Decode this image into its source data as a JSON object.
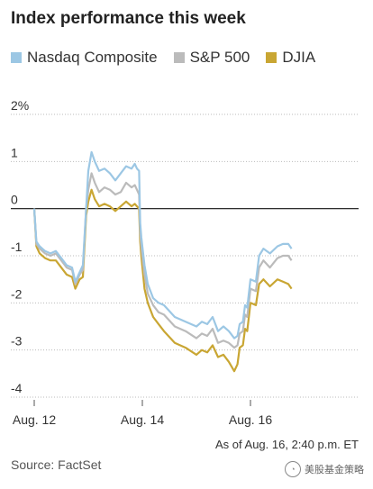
{
  "title": "Index performance this week",
  "note": "As of Aug. 16, 2:40 p.m. ET",
  "source": "Source: FactSet",
  "watermark": {
    "icon": "wechat-icon",
    "text": "美股基金策略"
  },
  "chart_data": {
    "type": "line",
    "title": "Index performance this week",
    "ylim": [
      -4,
      2
    ],
    "yticks": [
      {
        "value": 2,
        "label": "2%"
      },
      {
        "value": 1,
        "label": "1"
      },
      {
        "value": 0,
        "label": "0"
      },
      {
        "value": -1,
        "label": "-1"
      },
      {
        "value": -2,
        "label": "-2"
      },
      {
        "value": -3,
        "label": "-3"
      },
      {
        "value": -4,
        "label": "-4"
      }
    ],
    "xlim": [
      0,
      3
    ],
    "xticks": [
      {
        "value": 0,
        "label": "Aug. 12"
      },
      {
        "value": 1,
        "label": "Aug. 14"
      },
      {
        "value": 2,
        "label": "Aug. 16"
      }
    ],
    "grid": true,
    "legend": "top-left",
    "series": [
      {
        "name": "Nasdaq Composite",
        "color": "#9cc7e4",
        "points": [
          [
            0.0,
            0.0
          ],
          [
            0.02,
            -0.7
          ],
          [
            0.05,
            -0.8
          ],
          [
            0.1,
            -0.9
          ],
          [
            0.15,
            -0.95
          ],
          [
            0.2,
            -0.9
          ],
          [
            0.25,
            -1.05
          ],
          [
            0.3,
            -1.2
          ],
          [
            0.35,
            -1.25
          ],
          [
            0.38,
            -1.55
          ],
          [
            0.42,
            -1.35
          ],
          [
            0.45,
            -1.2
          ],
          [
            0.48,
            0.0
          ],
          [
            0.5,
            0.8
          ],
          [
            0.53,
            1.2
          ],
          [
            0.56,
            1.0
          ],
          [
            0.6,
            0.8
          ],
          [
            0.65,
            0.85
          ],
          [
            0.7,
            0.75
          ],
          [
            0.75,
            0.6
          ],
          [
            0.8,
            0.75
          ],
          [
            0.85,
            0.9
          ],
          [
            0.9,
            0.85
          ],
          [
            0.93,
            0.95
          ],
          [
            0.95,
            0.85
          ],
          [
            0.97,
            0.8
          ],
          [
            0.98,
            -0.3
          ],
          [
            0.99,
            -0.6
          ],
          [
            1.02,
            -1.2
          ],
          [
            1.05,
            -1.6
          ],
          [
            1.1,
            -1.9
          ],
          [
            1.15,
            -2.0
          ],
          [
            1.2,
            -2.05
          ],
          [
            1.3,
            -2.3
          ],
          [
            1.4,
            -2.4
          ],
          [
            1.5,
            -2.5
          ],
          [
            1.55,
            -2.4
          ],
          [
            1.6,
            -2.45
          ],
          [
            1.65,
            -2.3
          ],
          [
            1.7,
            -2.6
          ],
          [
            1.75,
            -2.5
          ],
          [
            1.8,
            -2.6
          ],
          [
            1.85,
            -2.75
          ],
          [
            1.88,
            -2.7
          ],
          [
            1.9,
            -2.45
          ],
          [
            1.93,
            -2.4
          ],
          [
            1.95,
            -2.05
          ],
          [
            1.97,
            -2.1
          ],
          [
            2.0,
            -1.5
          ],
          [
            2.05,
            -1.55
          ],
          [
            2.08,
            -1.0
          ],
          [
            2.12,
            -0.85
          ],
          [
            2.18,
            -0.95
          ],
          [
            2.25,
            -0.8
          ],
          [
            2.3,
            -0.75
          ],
          [
            2.35,
            -0.75
          ],
          [
            2.38,
            -0.85
          ]
        ]
      },
      {
        "name": "S&P 500",
        "color": "#bbbbbb",
        "points": [
          [
            0.0,
            0.0
          ],
          [
            0.02,
            -0.75
          ],
          [
            0.05,
            -0.85
          ],
          [
            0.1,
            -0.95
          ],
          [
            0.15,
            -1.0
          ],
          [
            0.2,
            -0.95
          ],
          [
            0.25,
            -1.1
          ],
          [
            0.3,
            -1.25
          ],
          [
            0.35,
            -1.3
          ],
          [
            0.38,
            -1.6
          ],
          [
            0.42,
            -1.4
          ],
          [
            0.45,
            -1.3
          ],
          [
            0.48,
            0.0
          ],
          [
            0.5,
            0.4
          ],
          [
            0.53,
            0.75
          ],
          [
            0.56,
            0.55
          ],
          [
            0.6,
            0.35
          ],
          [
            0.65,
            0.45
          ],
          [
            0.7,
            0.4
          ],
          [
            0.75,
            0.3
          ],
          [
            0.8,
            0.35
          ],
          [
            0.85,
            0.55
          ],
          [
            0.9,
            0.45
          ],
          [
            0.93,
            0.5
          ],
          [
            0.95,
            0.4
          ],
          [
            0.97,
            0.3
          ],
          [
            0.98,
            -0.5
          ],
          [
            0.99,
            -0.8
          ],
          [
            1.02,
            -1.4
          ],
          [
            1.05,
            -1.8
          ],
          [
            1.1,
            -2.05
          ],
          [
            1.15,
            -2.2
          ],
          [
            1.2,
            -2.25
          ],
          [
            1.3,
            -2.5
          ],
          [
            1.4,
            -2.6
          ],
          [
            1.5,
            -2.75
          ],
          [
            1.55,
            -2.65
          ],
          [
            1.6,
            -2.7
          ],
          [
            1.65,
            -2.55
          ],
          [
            1.7,
            -2.85
          ],
          [
            1.75,
            -2.8
          ],
          [
            1.8,
            -2.85
          ],
          [
            1.85,
            -2.95
          ],
          [
            1.88,
            -2.9
          ],
          [
            1.9,
            -2.65
          ],
          [
            1.93,
            -2.6
          ],
          [
            1.95,
            -2.25
          ],
          [
            1.97,
            -2.3
          ],
          [
            2.0,
            -1.7
          ],
          [
            2.05,
            -1.75
          ],
          [
            2.08,
            -1.25
          ],
          [
            2.12,
            -1.1
          ],
          [
            2.18,
            -1.25
          ],
          [
            2.25,
            -1.05
          ],
          [
            2.3,
            -1.0
          ],
          [
            2.35,
            -1.0
          ],
          [
            2.38,
            -1.1
          ]
        ]
      },
      {
        "name": "DJIA",
        "color": "#c9a633",
        "points": [
          [
            0.0,
            0.0
          ],
          [
            0.02,
            -0.8
          ],
          [
            0.05,
            -0.95
          ],
          [
            0.1,
            -1.05
          ],
          [
            0.15,
            -1.1
          ],
          [
            0.2,
            -1.1
          ],
          [
            0.25,
            -1.25
          ],
          [
            0.3,
            -1.4
          ],
          [
            0.35,
            -1.45
          ],
          [
            0.38,
            -1.7
          ],
          [
            0.42,
            -1.5
          ],
          [
            0.45,
            -1.45
          ],
          [
            0.48,
            -0.15
          ],
          [
            0.5,
            0.15
          ],
          [
            0.53,
            0.4
          ],
          [
            0.56,
            0.2
          ],
          [
            0.6,
            0.05
          ],
          [
            0.65,
            0.1
          ],
          [
            0.7,
            0.05
          ],
          [
            0.75,
            -0.05
          ],
          [
            0.8,
            0.05
          ],
          [
            0.85,
            0.15
          ],
          [
            0.9,
            0.05
          ],
          [
            0.93,
            0.1
          ],
          [
            0.95,
            0.05
          ],
          [
            0.97,
            0.0
          ],
          [
            0.98,
            -0.7
          ],
          [
            0.99,
            -1.0
          ],
          [
            1.02,
            -1.7
          ],
          [
            1.05,
            -2.0
          ],
          [
            1.1,
            -2.3
          ],
          [
            1.15,
            -2.45
          ],
          [
            1.2,
            -2.6
          ],
          [
            1.3,
            -2.85
          ],
          [
            1.4,
            -2.95
          ],
          [
            1.5,
            -3.1
          ],
          [
            1.55,
            -3.0
          ],
          [
            1.6,
            -3.05
          ],
          [
            1.65,
            -2.9
          ],
          [
            1.7,
            -3.15
          ],
          [
            1.75,
            -3.1
          ],
          [
            1.8,
            -3.25
          ],
          [
            1.85,
            -3.45
          ],
          [
            1.88,
            -3.3
          ],
          [
            1.9,
            -2.95
          ],
          [
            1.93,
            -2.9
          ],
          [
            1.95,
            -2.55
          ],
          [
            1.97,
            -2.6
          ],
          [
            2.0,
            -2.0
          ],
          [
            2.05,
            -2.05
          ],
          [
            2.08,
            -1.6
          ],
          [
            2.12,
            -1.5
          ],
          [
            2.18,
            -1.65
          ],
          [
            2.25,
            -1.5
          ],
          [
            2.3,
            -1.55
          ],
          [
            2.35,
            -1.6
          ],
          [
            2.38,
            -1.7
          ]
        ]
      }
    ]
  }
}
